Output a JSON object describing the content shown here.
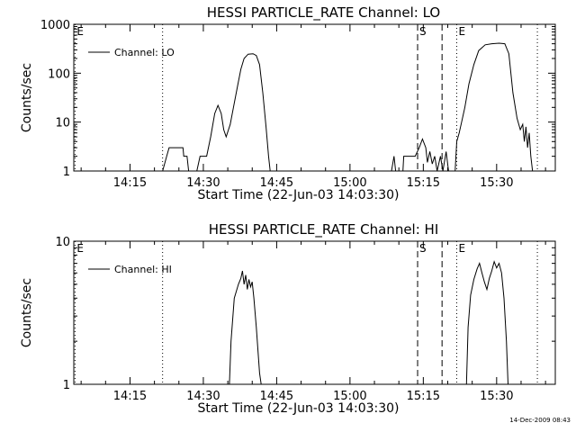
{
  "timestamp": "14-Dec-2009 08:43",
  "chart_data": [
    {
      "type": "line",
      "title": "HESSI PARTICLE_RATE Channel: LO",
      "xlabel": "Start Time (22-Jun-03 14:03:30)",
      "ylabel": "Counts/sec",
      "yscale": "log",
      "xlim": [
        "14:03:30",
        "15:42:00"
      ],
      "ylim": [
        1,
        1000
      ],
      "x_ticks": [
        "14:15",
        "14:30",
        "14:45",
        "15:00",
        "15:15",
        "15:30"
      ],
      "y_ticks": [
        "1",
        "10",
        "100",
        "1000"
      ],
      "legend": {
        "label": "Channel: LO",
        "placement": "top-left"
      },
      "markers": [
        {
          "label": "E",
          "time": "14:03:45",
          "style": "dotted"
        },
        {
          "label": "",
          "time": "14:21:40",
          "style": "dotted"
        },
        {
          "label": "S",
          "time": "15:13:50",
          "style": "dashed"
        },
        {
          "label": "",
          "time": "15:18:50",
          "style": "dashed"
        },
        {
          "label": "E",
          "time": "15:21:50",
          "style": "dotted"
        },
        {
          "label": "",
          "time": "15:38:20",
          "style": "dotted"
        }
      ],
      "series": [
        {
          "segments": [
            [
              [
                "14:21:40",
                1
              ],
              [
                "14:22:30",
                2
              ],
              [
                "14:23:00",
                3
              ],
              [
                "14:25:50",
                3
              ],
              [
                "14:26:00",
                2
              ],
              [
                "14:26:40",
                2
              ],
              [
                "14:27:00",
                1
              ]
            ],
            [
              [
                "14:28:40",
                1
              ],
              [
                "14:29:20",
                2
              ],
              [
                "14:30:40",
                2
              ],
              [
                "14:31:30",
                5
              ],
              [
                "14:32:20",
                15
              ],
              [
                "14:33:00",
                22
              ],
              [
                "14:33:40",
                15
              ],
              [
                "14:34:10",
                7
              ],
              [
                "14:34:40",
                5
              ],
              [
                "14:35:30",
                9
              ],
              [
                "14:36:10",
                20
              ],
              [
                "14:37:00",
                55
              ],
              [
                "14:37:40",
                120
              ],
              [
                "14:38:20",
                200
              ],
              [
                "14:39:10",
                245
              ],
              [
                "14:40:10",
                250
              ],
              [
                "14:40:50",
                230
              ],
              [
                "14:41:30",
                150
              ],
              [
                "14:42:10",
                40
              ],
              [
                "14:42:50",
                8
              ],
              [
                "14:43:20",
                2
              ],
              [
                "14:43:40",
                1
              ]
            ],
            [
              [
                "15:08:30",
                1
              ],
              [
                "15:09:00",
                2
              ],
              [
                "15:09:20",
                1
              ]
            ],
            [
              [
                "15:10:50",
                1
              ],
              [
                "15:11:00",
                2
              ],
              [
                "15:12:40",
                2
              ],
              [
                "15:13:20",
                2
              ],
              [
                "15:14:10",
                3
              ],
              [
                "15:14:50",
                4.5
              ],
              [
                "15:15:30",
                3
              ],
              [
                "15:15:50",
                1.5
              ],
              [
                "15:16:20",
                2.5
              ],
              [
                "15:16:50",
                1.4
              ],
              [
                "15:17:20",
                2
              ],
              [
                "15:17:50",
                1
              ],
              [
                "15:18:30",
                2
              ],
              [
                "15:19:00",
                1
              ],
              [
                "15:19:40",
                2.5
              ],
              [
                "15:20:10",
                1
              ]
            ],
            [
              [
                "15:21:30",
                1
              ],
              [
                "15:21:50",
                4
              ],
              [
                "15:22:20",
                6
              ],
              [
                "15:22:50",
                10
              ],
              [
                "15:23:30",
                20
              ],
              [
                "15:24:20",
                60
              ],
              [
                "15:25:20",
                150
              ],
              [
                "15:26:20",
                290
              ],
              [
                "15:27:40",
                380
              ],
              [
                "15:29:00",
                400
              ],
              [
                "15:30:30",
                410
              ],
              [
                "15:31:40",
                400
              ],
              [
                "15:32:30",
                250
              ],
              [
                "15:33:20",
                40
              ],
              [
                "15:34:10",
                12
              ],
              [
                "15:34:50",
                7
              ],
              [
                "15:35:20",
                9
              ],
              [
                "15:35:40",
                4
              ],
              [
                "15:36:00",
                8
              ],
              [
                "15:36:20",
                3
              ],
              [
                "15:36:40",
                6
              ],
              [
                "15:37:00",
                2
              ],
              [
                "15:37:20",
                1
              ]
            ]
          ]
        }
      ]
    },
    {
      "type": "line",
      "title": "HESSI PARTICLE_RATE Channel: HI",
      "xlabel": "Start Time (22-Jun-03 14:03:30)",
      "ylabel": "Counts/sec",
      "yscale": "log",
      "xlim": [
        "14:03:30",
        "15:42:00"
      ],
      "ylim": [
        1,
        10
      ],
      "x_ticks": [
        "14:15",
        "14:30",
        "14:45",
        "15:00",
        "15:15",
        "15:30"
      ],
      "y_ticks": [
        "1",
        "10"
      ],
      "legend": {
        "label": "Channel: HI",
        "placement": "top-left"
      },
      "markers": [
        {
          "label": "E",
          "time": "14:03:45",
          "style": "dotted"
        },
        {
          "label": "",
          "time": "14:21:40",
          "style": "dotted"
        },
        {
          "label": "S",
          "time": "15:13:50",
          "style": "dashed"
        },
        {
          "label": "",
          "time": "15:18:50",
          "style": "dashed"
        },
        {
          "label": "E",
          "time": "15:21:50",
          "style": "dotted"
        },
        {
          "label": "",
          "time": "15:38:20",
          "style": "dotted"
        }
      ],
      "series": [
        {
          "segments": [
            [
              [
                "14:35:20",
                1
              ],
              [
                "14:35:40",
                2
              ],
              [
                "14:36:20",
                4
              ],
              [
                "14:37:10",
                5
              ],
              [
                "14:37:40",
                5.5
              ],
              [
                "14:38:00",
                6.2
              ],
              [
                "14:38:20",
                5
              ],
              [
                "14:38:40",
                5.8
              ],
              [
                "14:39:00",
                4.6
              ],
              [
                "14:39:20",
                5.4
              ],
              [
                "14:39:40",
                4.8
              ],
              [
                "14:40:00",
                5.2
              ],
              [
                "14:40:20",
                4
              ],
              [
                "14:40:50",
                2.5
              ],
              [
                "14:41:30",
                1.2
              ],
              [
                "14:41:50",
                1
              ]
            ],
            [
              [
                "15:23:50",
                1
              ],
              [
                "15:24:10",
                2.5
              ],
              [
                "15:24:40",
                4.2
              ],
              [
                "15:25:20",
                5.4
              ],
              [
                "15:26:00",
                6.4
              ],
              [
                "15:26:30",
                7
              ],
              [
                "15:27:00",
                6
              ],
              [
                "15:27:30",
                5.2
              ],
              [
                "15:28:00",
                4.6
              ],
              [
                "15:28:30",
                5.5
              ],
              [
                "15:29:00",
                6.2
              ],
              [
                "15:29:30",
                7.2
              ],
              [
                "15:30:00",
                6.5
              ],
              [
                "15:30:30",
                7
              ],
              [
                "15:31:00",
                6
              ],
              [
                "15:31:30",
                4
              ],
              [
                "15:32:00",
                2
              ],
              [
                "15:32:20",
                1
              ]
            ]
          ]
        }
      ]
    }
  ]
}
